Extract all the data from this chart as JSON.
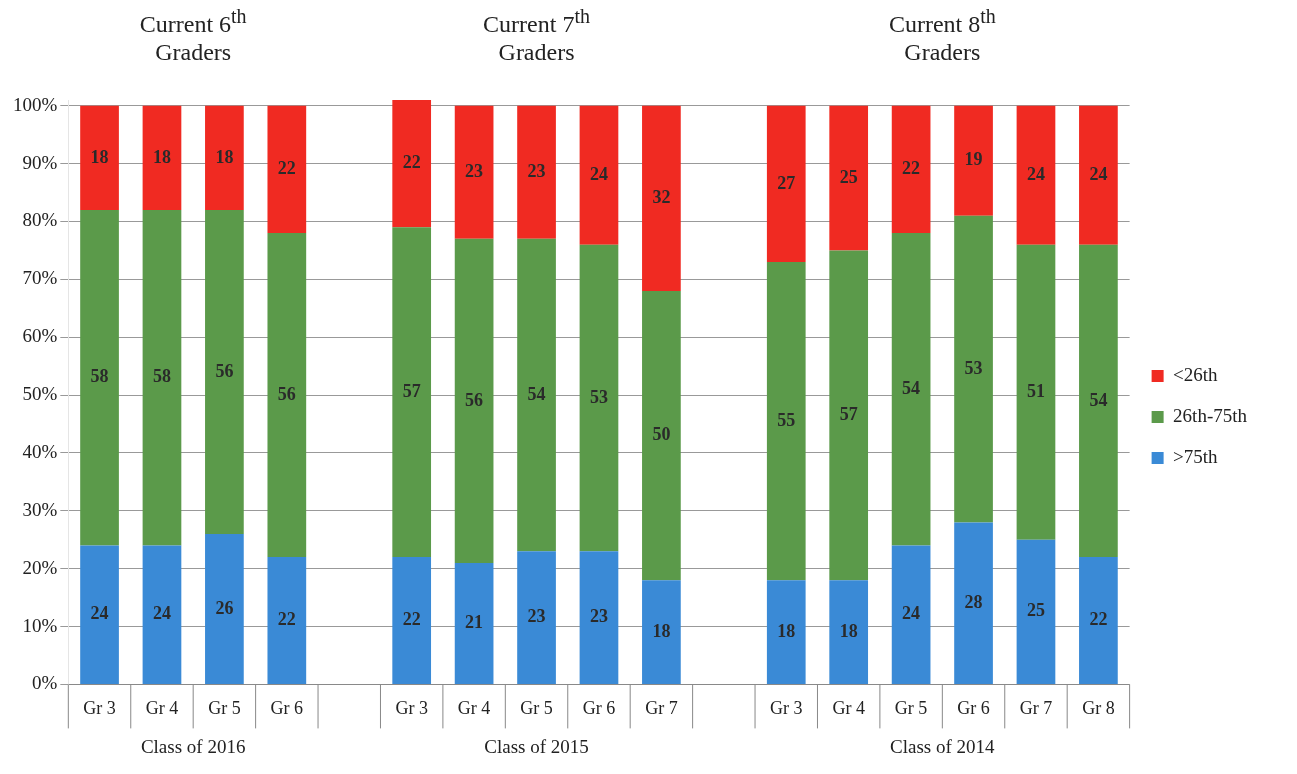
{
  "chart_data": {
    "type": "bar",
    "stacked": true,
    "categories": [
      "Gr 3",
      "Gr 4",
      "Gr 5",
      "Gr 6",
      null,
      "Gr 3",
      "Gr 4",
      "Gr 5",
      "Gr 6",
      "Gr 7",
      null,
      "Gr 3",
      "Gr 4",
      "Gr 5",
      "Gr 6",
      "Gr 7",
      "Gr 8"
    ],
    "series": [
      {
        "name": ">75th",
        "color": "#3a8ad6",
        "values": [
          24,
          24,
          26,
          22,
          null,
          22,
          21,
          23,
          23,
          18,
          null,
          18,
          18,
          24,
          28,
          25,
          22
        ]
      },
      {
        "name": "26th-75th",
        "color": "#5b9a4a",
        "values": [
          58,
          58,
          56,
          56,
          null,
          57,
          56,
          54,
          53,
          50,
          null,
          55,
          57,
          54,
          53,
          51,
          54
        ]
      },
      {
        "name": "<26th",
        "color": "#f02a22",
        "values": [
          18,
          18,
          18,
          22,
          null,
          22,
          23,
          23,
          24,
          32,
          null,
          27,
          25,
          22,
          19,
          24,
          24
        ]
      }
    ],
    "ylim": [
      0,
      101
    ],
    "yticks": [
      {
        "value": 0,
        "label": "0%"
      },
      {
        "value": 10,
        "label": "10%"
      },
      {
        "value": 20,
        "label": "20%"
      },
      {
        "value": 30,
        "label": "30%"
      },
      {
        "value": 40,
        "label": "40%"
      },
      {
        "value": 50,
        "label": "50%"
      },
      {
        "value": 60,
        "label": "60%"
      },
      {
        "value": 70,
        "label": "70%"
      },
      {
        "value": 80,
        "label": "80%"
      },
      {
        "value": 90,
        "label": "90%"
      },
      {
        "value": 100,
        "label": "100%"
      }
    ],
    "annotations": [
      "Current 6$^{th}$ Graders",
      "Current 7$^{th}$ Graders",
      "Current 8$^{th}$ Graders",
      "Class of 2016",
      "Class of 2015",
      "Class of 2014"
    ],
    "data_labels": true,
    "grid": "y",
    "legend": "right"
  }
}
